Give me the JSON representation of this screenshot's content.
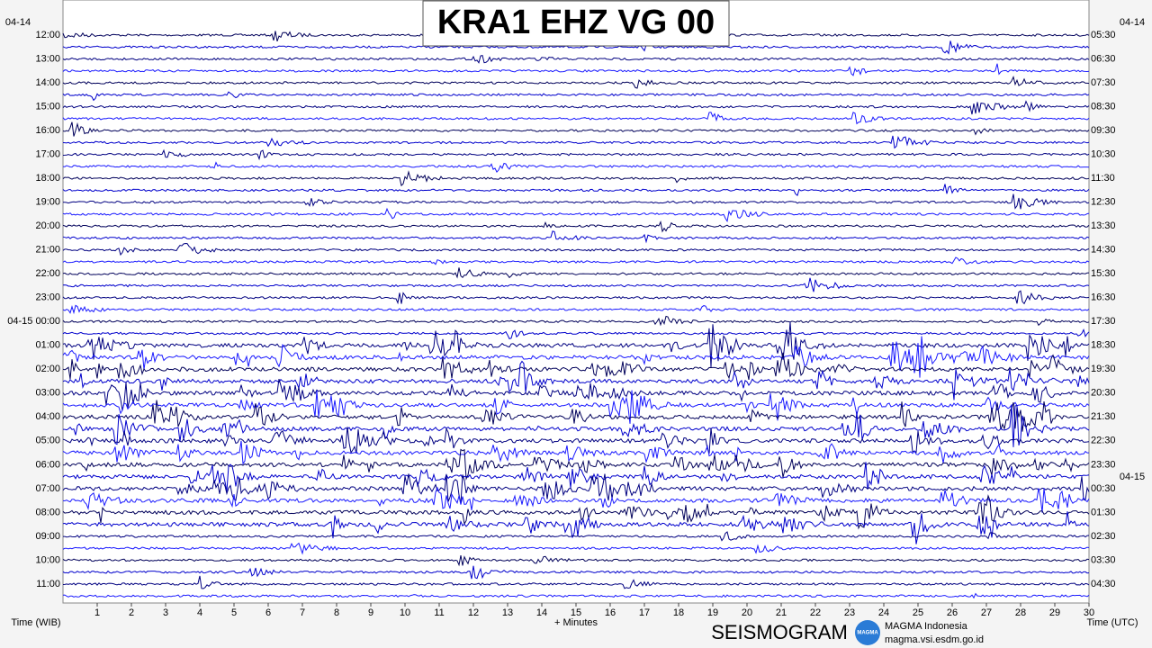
{
  "title": "KRA1 EHZ VG 00",
  "left_axis": {
    "date": "04-14",
    "labels": [
      "12:00",
      "13:00",
      "14:00",
      "15:00",
      "16:00",
      "17:00",
      "18:00",
      "19:00",
      "20:00",
      "21:00",
      "22:00",
      "23:00",
      "04-15 00:00",
      "01:00",
      "02:00",
      "03:00",
      "04:00",
      "05:00",
      "06:00",
      "07:00",
      "08:00",
      "09:00",
      "10:00",
      "11:00"
    ]
  },
  "right_axis": {
    "date": "04-14",
    "date_change": "04-15",
    "labels": [
      "05:30",
      "06:30",
      "07:30",
      "08:30",
      "09:30",
      "10:30",
      "11:30",
      "12:30",
      "13:30",
      "14:30",
      "15:30",
      "16:30",
      "17:30",
      "18:30",
      "19:30",
      "20:30",
      "21:30",
      "22:30",
      "23:30",
      "00:30",
      "01:30",
      "02:30",
      "03:30",
      "04:30"
    ]
  },
  "x_axis": {
    "ticks": [
      "1",
      "2",
      "3",
      "4",
      "5",
      "6",
      "7",
      "8",
      "9",
      "10",
      "11",
      "12",
      "13",
      "14",
      "15",
      "16",
      "17",
      "18",
      "19",
      "20",
      "21",
      "22",
      "23",
      "24",
      "25",
      "26",
      "27",
      "28",
      "29",
      "30"
    ],
    "left_label": "Time (WIB)",
    "center_label": "+ Minutes",
    "right_label": "Time (UTC)"
  },
  "footer": {
    "brand": "SEISMOGRAM",
    "logo": "MAGMA",
    "org": "MAGMA Indonesia",
    "url": "magma.vsi.esdm.go.id"
  }
}
